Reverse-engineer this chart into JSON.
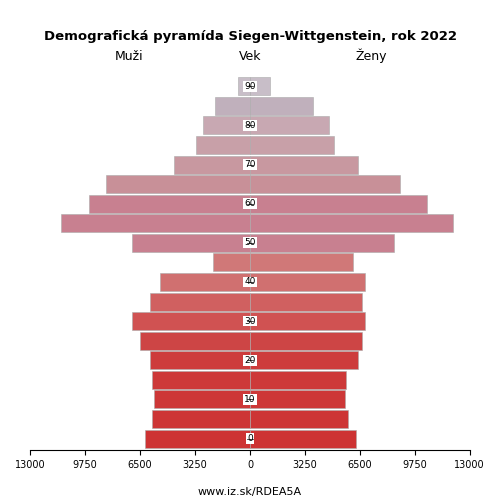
{
  "title": "Demografická pyramída Siegen-Wittgenstein, rok 2022",
  "xlabel_left": "Muži",
  "xlabel_right": "Ženy",
  "xlabel_center": "Vek",
  "footer": "www.iz.sk/RDEA5A",
  "age_groups": [
    0,
    5,
    10,
    15,
    20,
    25,
    30,
    35,
    40,
    45,
    50,
    55,
    60,
    65,
    70,
    75,
    80,
    85,
    90
  ],
  "males": [
    6200,
    5800,
    5700,
    5800,
    5900,
    6500,
    7000,
    5900,
    5300,
    2200,
    7000,
    11200,
    9500,
    8500,
    4500,
    3200,
    2800,
    2100,
    700
  ],
  "females": [
    6300,
    5800,
    5600,
    5700,
    6400,
    6600,
    6800,
    6600,
    6800,
    6100,
    8500,
    12000,
    10500,
    8900,
    6400,
    5000,
    4700,
    3700,
    1200
  ],
  "male_colors": [
    "#cd3333",
    "#cd3535",
    "#cd3737",
    "#cd3939",
    "#cd3c3c",
    "#cd4545",
    "#d05252",
    "#d06060",
    "#d07070",
    "#d07878",
    "#c88090",
    "#c88090",
    "#c88090",
    "#c89098",
    "#c898a0",
    "#c8a0a8",
    "#c8a8b2",
    "#c0b0bc",
    "#c8bec8"
  ],
  "female_colors": [
    "#cd3333",
    "#cd3535",
    "#cd3737",
    "#cd3939",
    "#cd3c3c",
    "#cd4545",
    "#d05252",
    "#d06060",
    "#d07070",
    "#d07878",
    "#c88090",
    "#c88090",
    "#c88090",
    "#c89098",
    "#c898a0",
    "#c8a0a8",
    "#c8a8b2",
    "#c0b0bc",
    "#c8bec8"
  ],
  "xlim": 13000,
  "bar_height": 4.6,
  "background_color": "#ffffff",
  "ytick_vals": [
    0,
    10,
    20,
    30,
    40,
    50,
    60,
    70,
    80,
    90
  ],
  "xtick_vals": [
    -13000,
    -9750,
    -6500,
    -3250,
    0,
    3250,
    6500,
    9750,
    13000
  ],
  "xtick_labels": [
    "13000",
    "9750",
    "6500",
    "3250",
    "0",
    "3250",
    "6500",
    "9750",
    "13000"
  ]
}
